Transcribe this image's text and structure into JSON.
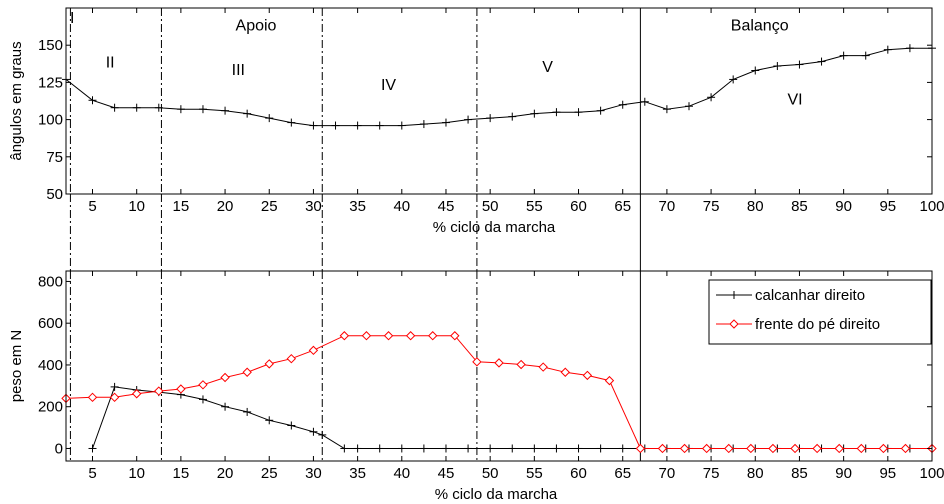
{
  "chart_data": [
    {
      "type": "line",
      "xlabel": "% ciclo da marcha",
      "ylabel": "ângulos em graus",
      "xlim": [
        2,
        100
      ],
      "ylim": [
        50,
        175
      ],
      "xticks": [
        5,
        10,
        15,
        20,
        25,
        30,
        35,
        40,
        45,
        50,
        55,
        60,
        65,
        70,
        75,
        80,
        85,
        90,
        95,
        100
      ],
      "yticks": [
        50,
        75,
        100,
        125,
        150
      ],
      "grid": false,
      "series": [
        {
          "name": "",
          "color": "#000000",
          "marker": "plus",
          "x": [
            2,
            5,
            7.5,
            10,
            12.5,
            15,
            17.5,
            20,
            22.5,
            25,
            27.5,
            30,
            32.5,
            35,
            37.5,
            40,
            42.5,
            45,
            47.5,
            50,
            52.5,
            55,
            57.5,
            60,
            62.5,
            65,
            67.5,
            70,
            72.5,
            75,
            77.5,
            80,
            82.5,
            85,
            87.5,
            90,
            92.5,
            95,
            97.5,
            100
          ],
          "y": [
            127,
            113,
            108,
            108,
            108,
            107,
            107,
            106,
            104,
            101,
            98,
            96,
            96,
            96,
            96,
            96,
            97,
            98,
            100,
            101,
            102,
            104,
            105,
            105,
            106,
            110,
            112,
            107,
            109,
            115,
            127,
            133,
            136,
            137,
            139,
            143,
            143,
            147,
            148,
            148
          ]
        }
      ],
      "phase_lines": [
        {
          "x": 2.5,
          "style": "dashdot"
        },
        {
          "x": 12.8,
          "style": "dashdot"
        },
        {
          "x": 31,
          "style": "dashdot"
        },
        {
          "x": 48.5,
          "style": "dashdot"
        },
        {
          "x": 67,
          "style": "solid"
        }
      ],
      "annotations": [
        {
          "text": "I",
          "x": 2.7,
          "y": 165
        },
        {
          "text": "II",
          "x": 7,
          "y": 135
        },
        {
          "text": "III",
          "x": 21.5,
          "y": 130
        },
        {
          "text": "IV",
          "x": 38.5,
          "y": 120
        },
        {
          "text": "V",
          "x": 56.5,
          "y": 132
        },
        {
          "text": "VI",
          "x": 84.5,
          "y": 110
        },
        {
          "text": "Apoio",
          "x": 23.5,
          "y": 160
        },
        {
          "text": "Balanço",
          "x": 80.5,
          "y": 160
        }
      ]
    },
    {
      "type": "line",
      "xlabel": "% ciclo da marcha",
      "ylabel": "peso em N",
      "xlim": [
        2,
        100
      ],
      "ylim": [
        -60,
        850
      ],
      "xticks": [
        5,
        10,
        15,
        20,
        25,
        30,
        35,
        40,
        45,
        50,
        55,
        60,
        65,
        70,
        75,
        80,
        85,
        90,
        95,
        100
      ],
      "yticks": [
        0,
        200,
        400,
        600,
        800
      ],
      "grid": false,
      "legend_position": "top-right",
      "series": [
        {
          "name": "calcanhar direito",
          "color": "#000000",
          "marker": "plus",
          "x": [
            5,
            7.5,
            10,
            12.5,
            15,
            17.5,
            20,
            22.5,
            25,
            27.5,
            30,
            31,
            33.5,
            35,
            37.5,
            40,
            42.5,
            45,
            47.5,
            50,
            52.5,
            55,
            57.5,
            60,
            62.5,
            65,
            67.5,
            70,
            72.5,
            75,
            77.5,
            80,
            82.5,
            85,
            87.5,
            90,
            92.5,
            95,
            97.5,
            100
          ],
          "y": [
            0,
            295,
            280,
            270,
            258,
            235,
            200,
            175,
            135,
            110,
            80,
            65,
            0,
            0,
            0,
            0,
            0,
            0,
            0,
            0,
            0,
            0,
            0,
            0,
            0,
            0,
            0,
            0,
            0,
            0,
            0,
            0,
            0,
            0,
            0,
            0,
            0,
            0,
            0,
            0
          ]
        },
        {
          "name": "frente do pé direito",
          "color": "#ff0000",
          "marker": "diamond",
          "x": [
            2,
            5,
            7.5,
            10,
            12.5,
            15,
            17.5,
            20,
            22.5,
            25,
            27.5,
            30,
            33.5,
            36,
            38.5,
            41,
            43.5,
            46,
            48.5,
            51,
            53.5,
            56,
            58.5,
            61,
            63.5,
            67,
            69.5,
            72,
            74.5,
            77,
            79.5,
            82,
            84.5,
            87,
            89.5,
            92,
            94.5,
            97,
            100
          ],
          "y": [
            240,
            245,
            245,
            262,
            275,
            285,
            305,
            340,
            365,
            405,
            430,
            470,
            540,
            540,
            540,
            540,
            540,
            540,
            415,
            410,
            402,
            390,
            365,
            350,
            325,
            0,
            0,
            0,
            0,
            0,
            0,
            0,
            0,
            0,
            0,
            0,
            0,
            0,
            0
          ]
        }
      ],
      "phase_lines": [
        {
          "x": 2.5,
          "style": "dashdot"
        },
        {
          "x": 12.8,
          "style": "dashdot"
        },
        {
          "x": 31,
          "style": "dashdot"
        },
        {
          "x": 48.5,
          "style": "dashdot"
        },
        {
          "x": 67,
          "style": "solid"
        }
      ]
    }
  ]
}
